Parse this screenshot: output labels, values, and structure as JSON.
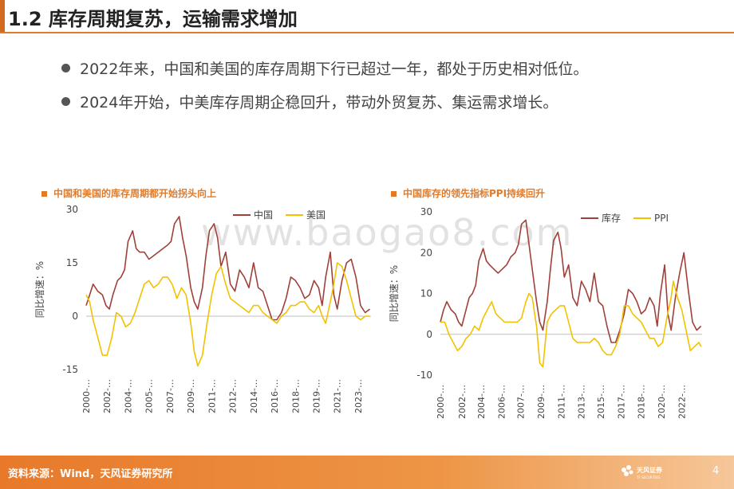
{
  "slide": {
    "title": "1.2 库存周期复苏，运输需求增加",
    "bullets": [
      "2022年来，中国和美国的库存周期下行已超过一年，都处于历史相对低位。",
      "2024年开始，中美库存周期企稳回升，带动外贸复苏、集运需求增长。"
    ],
    "watermark": "www.baogao8.com",
    "footer": "资料来源：Wind，天风证券研究所",
    "logo_text": "天风证券",
    "logo_subtext": "TF SECURITIES",
    "page_number": "4"
  },
  "colors": {
    "china": "#a0403a",
    "us": "#f2c200",
    "ppi": "#f2c200",
    "accent": "#e07b2a"
  },
  "chart_data": [
    {
      "type": "line",
      "title": "中国和美国的库存周期都开始拐头向上",
      "ylabel": "同比增速：%",
      "ylim": [
        -15,
        30
      ],
      "yticks": [
        -15,
        0,
        15,
        30
      ],
      "xlim": [
        2000,
        2024.5
      ],
      "xtick_labels": [
        "2000-…",
        "2002-…",
        "2004-…",
        "2005-…",
        "2007-…",
        "2009-…",
        "2011-…",
        "2012-…",
        "2014-…",
        "2016-…",
        "2018-…",
        "2019-…",
        "2021-…",
        "2023-…"
      ],
      "xtick_years": [
        2000.0,
        2001.8,
        2003.6,
        2005.4,
        2007.2,
        2009.0,
        2010.8,
        2012.6,
        2014.4,
        2016.2,
        2018.0,
        2019.8,
        2021.6,
        2023.4
      ],
      "legend_position": "top-right",
      "series": [
        {
          "name": "中国",
          "color": "#a0403a",
          "x": [
            2000,
            2000.3,
            2000.6,
            2001,
            2001.4,
            2001.7,
            2002,
            2002.3,
            2002.7,
            2003,
            2003.3,
            2003.6,
            2004,
            2004.3,
            2004.6,
            2005,
            2005.4,
            2005.8,
            2006.2,
            2006.6,
            2007,
            2007.3,
            2007.6,
            2008,
            2008.3,
            2008.6,
            2009,
            2009.3,
            2009.6,
            2010,
            2010.3,
            2010.6,
            2011,
            2011.3,
            2011.6,
            2012,
            2012.4,
            2012.8,
            2013.2,
            2013.6,
            2014,
            2014.4,
            2014.8,
            2015.2,
            2015.6,
            2016,
            2016.4,
            2016.8,
            2017.2,
            2017.6,
            2018,
            2018.4,
            2018.8,
            2019.2,
            2019.6,
            2020,
            2020.3,
            2020.6,
            2021,
            2021.3,
            2021.6,
            2022,
            2022.4,
            2022.8,
            2023.2,
            2023.6,
            2024,
            2024.4
          ],
          "y": [
            3,
            6,
            9,
            7,
            6,
            3,
            2,
            6,
            10,
            11,
            13,
            21,
            24,
            19,
            18,
            18,
            16,
            17,
            18,
            19,
            20,
            21,
            26,
            28,
            22,
            17,
            8,
            4,
            2,
            8,
            17,
            24,
            26,
            22,
            14,
            18,
            9,
            7,
            13,
            11,
            8,
            15,
            8,
            7,
            3,
            -1,
            -1,
            1,
            5,
            11,
            10,
            8,
            5,
            6,
            10,
            8,
            3,
            11,
            18,
            6,
            2,
            10,
            15,
            16,
            11,
            3,
            1,
            2
          ]
        },
        {
          "name": "美国",
          "color": "#f2c200",
          "x": [
            2000,
            2000.3,
            2000.6,
            2001,
            2001.4,
            2001.8,
            2002.2,
            2002.6,
            2003,
            2003.4,
            2003.8,
            2004.2,
            2004.6,
            2005,
            2005.4,
            2005.8,
            2006.2,
            2006.6,
            2007,
            2007.4,
            2007.8,
            2008.2,
            2008.6,
            2009,
            2009.3,
            2009.6,
            2010,
            2010.4,
            2010.8,
            2011.2,
            2011.6,
            2012,
            2012.4,
            2012.8,
            2013.2,
            2013.6,
            2014,
            2014.4,
            2014.8,
            2015.2,
            2015.6,
            2016,
            2016.4,
            2016.8,
            2017.2,
            2017.6,
            2018,
            2018.4,
            2018.8,
            2019.2,
            2019.6,
            2020,
            2020.3,
            2020.6,
            2021,
            2021.3,
            2021.6,
            2022,
            2022.4,
            2022.8,
            2023.2,
            2023.6,
            2024,
            2024.4
          ],
          "y": [
            6,
            4,
            -1,
            -6,
            -11,
            -11,
            -6,
            1,
            0,
            -3,
            -2,
            1,
            5,
            9,
            10,
            8,
            9,
            11,
            11,
            9,
            5,
            8,
            6,
            -2,
            -10,
            -14,
            -11,
            -2,
            6,
            12,
            14,
            9,
            5,
            4,
            3,
            2,
            1,
            3,
            3,
            1,
            0,
            -1,
            -2,
            0,
            1,
            3,
            3,
            4,
            4,
            2,
            1,
            3,
            0,
            -2,
            4,
            9,
            15,
            14,
            10,
            5,
            0,
            -1,
            0,
            0
          ]
        }
      ]
    },
    {
      "type": "line",
      "title": "中国库存的领先指标PPI持续回升",
      "ylabel": "同比增速：%",
      "ylim": [
        -10,
        30
      ],
      "yticks": [
        -10,
        0,
        10,
        20,
        30
      ],
      "xlim": [
        2000,
        2024.5
      ],
      "xtick_labels": [
        "2000-…",
        "2002-…",
        "2004-…",
        "2006-…",
        "2007-…",
        "2009-…",
        "2011-…",
        "2013-…",
        "2015-…",
        "2017-…",
        "2018-…",
        "2020-…",
        "2022-…"
      ],
      "xtick_years": [
        2000.0,
        2002.0,
        2003.8,
        2005.7,
        2007.5,
        2009.4,
        2011.3,
        2013.2,
        2015.0,
        2016.9,
        2018.8,
        2020.7,
        2022.6
      ],
      "legend_position": "top-right",
      "series": [
        {
          "name": "库存",
          "color": "#a0403a",
          "x": [
            2000,
            2000.3,
            2000.6,
            2001,
            2001.4,
            2001.7,
            2002,
            2002.3,
            2002.7,
            2003,
            2003.3,
            2003.6,
            2004,
            2004.3,
            2004.6,
            2005,
            2005.4,
            2005.8,
            2006.2,
            2006.6,
            2007,
            2007.3,
            2007.6,
            2008,
            2008.3,
            2008.6,
            2009,
            2009.3,
            2009.6,
            2010,
            2010.3,
            2010.6,
            2011,
            2011.3,
            2011.6,
            2012,
            2012.4,
            2012.8,
            2013.2,
            2013.6,
            2014,
            2014.4,
            2014.8,
            2015.2,
            2015.6,
            2016,
            2016.4,
            2016.8,
            2017.2,
            2017.6,
            2018,
            2018.4,
            2018.8,
            2019.2,
            2019.6,
            2020,
            2020.3,
            2020.6,
            2021,
            2021.3,
            2021.6,
            2022,
            2022.4,
            2022.8,
            2023.2,
            2023.6,
            2024,
            2024.4
          ],
          "y": [
            3,
            6,
            8,
            6,
            5,
            3,
            2,
            5,
            9,
            10,
            12,
            18,
            21,
            18,
            17,
            16,
            15,
            16,
            17,
            19,
            20,
            22,
            27,
            28,
            22,
            16,
            8,
            3,
            1,
            8,
            16,
            23,
            25,
            21,
            14,
            17,
            9,
            7,
            13,
            11,
            8,
            15,
            8,
            7,
            2,
            -2,
            -2,
            1,
            5,
            11,
            10,
            8,
            5,
            6,
            9,
            7,
            2,
            10,
            17,
            5,
            1,
            9,
            15,
            20,
            11,
            3,
            1,
            2
          ]
        },
        {
          "name": "PPI",
          "color": "#f2c200",
          "x": [
            2000,
            2000.4,
            2000.8,
            2001.2,
            2001.6,
            2002,
            2002.4,
            2002.8,
            2003.2,
            2003.6,
            2004,
            2004.4,
            2004.8,
            2005.2,
            2005.6,
            2006,
            2006.4,
            2006.8,
            2007.2,
            2007.6,
            2008,
            2008.3,
            2008.6,
            2009,
            2009.3,
            2009.6,
            2010,
            2010.4,
            2010.8,
            2011.2,
            2011.6,
            2012,
            2012.4,
            2012.8,
            2013.2,
            2013.6,
            2014,
            2014.4,
            2014.8,
            2015.2,
            2015.6,
            2016,
            2016.4,
            2016.8,
            2017.2,
            2017.6,
            2018,
            2018.4,
            2018.8,
            2019.2,
            2019.6,
            2020,
            2020.4,
            2020.8,
            2021.2,
            2021.6,
            2021.8,
            2022.2,
            2022.6,
            2023,
            2023.4,
            2023.8,
            2024.2,
            2024.4
          ],
          "y": [
            3,
            3,
            0,
            -2,
            -4,
            -3,
            -1,
            0,
            2,
            1,
            4,
            6,
            8,
            5,
            4,
            3,
            3,
            3,
            3,
            4,
            8,
            10,
            9,
            2,
            -7,
            -8,
            3,
            5,
            6,
            7,
            7,
            3,
            -1,
            -2,
            -2,
            -2,
            -2,
            -1,
            -2,
            -4,
            -5,
            -5,
            -3,
            0,
            7,
            7,
            5,
            4,
            3,
            1,
            -1,
            -1,
            -3,
            -2,
            4,
            9,
            13,
            9,
            6,
            1,
            -4,
            -3,
            -2,
            -3
          ]
        }
      ]
    }
  ]
}
